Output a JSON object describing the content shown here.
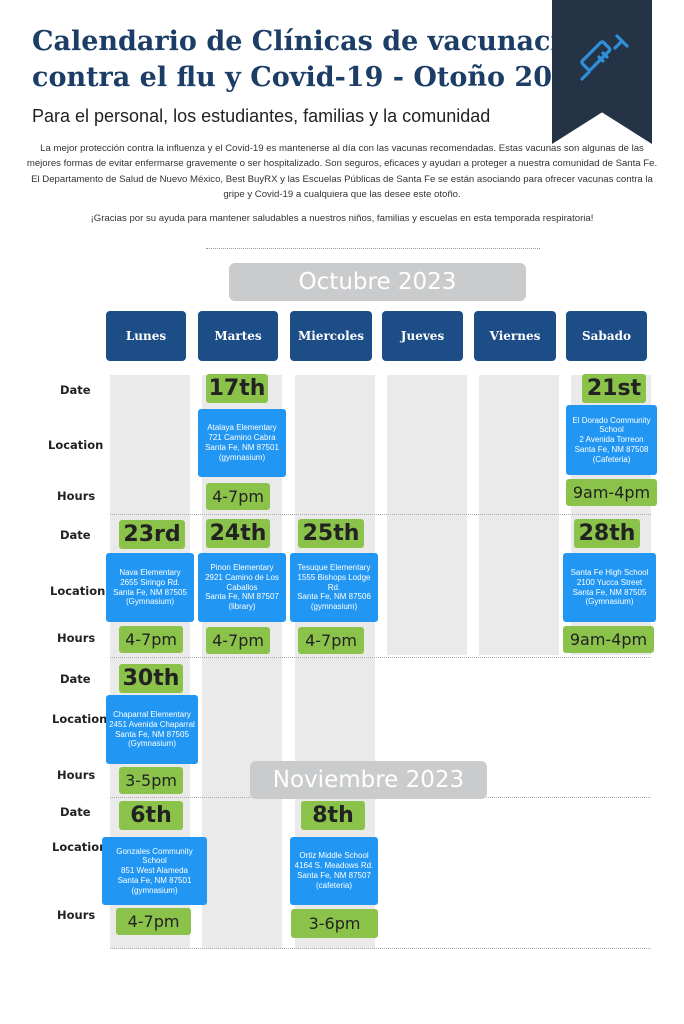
{
  "header": {
    "title_line1": "Calendario de Clínicas de vacunación",
    "title_line2": "contra el flu y Covid-19 - Otoño 2023",
    "subtitle": "Para el personal, los estudiantes, familias y la comunidad",
    "intro": "La mejor protección contra la influenza y el Covid-19 es mantenerse al día con las vacunas recomendadas. Estas vacunas son algunas de las mejores formas de evitar enfermarse gravemente o ser hospitalizado. Son seguros, eficaces y ayudan a proteger a nuestra comunidad de Santa Fe. El Departamento de Salud de Nuevo México, Best BuyRX y las Escuelas Públicas de Santa Fe se están asociando para ofrecer vacunas contra la gripe y Covid-19 a cualquiera que las desee este otoño.",
    "thanks": "¡Gracias por su ayuda para mantener saludables a nuestros niños, familias y escuelas en esta temporada respiratoria!",
    "icon": "syringe-icon"
  },
  "months": {
    "october": "Octubre 2023",
    "november": "Noviembre 2023"
  },
  "days": [
    "Lunes",
    "Martes",
    "Miercoles",
    "Jueves",
    "Viernes",
    "Sabado"
  ],
  "row_labels": {
    "date": "Date",
    "location": "Location",
    "hours": "Hours"
  },
  "clinics": [
    {
      "date": "17th",
      "location": "Atalaya Elementary\n721 Camino Cabra\nSanta Fe, NM 87501\n(gymnasium)",
      "hours": "4-7pm"
    },
    {
      "date": "21st",
      "location": "El Dorado Community\nSchool\n2 Avenida Torreon\nSanta Fe, NM 87508\n(Cafeteria)",
      "hours": "9am-4pm"
    },
    {
      "date": "23rd",
      "location": "Nava Elementary\n2655 Siringo Rd.\nSanta Fe, NM 87505\n(Gymnasium)",
      "hours": "4-7pm"
    },
    {
      "date": "24th",
      "location": "Pinon Elementary\n2921 Camino de Los\nCaballos\nSanta Fe, NM 87507\n(library)",
      "hours": "4-7pm"
    },
    {
      "date": "25th",
      "location": "Tesuque Elementary\n1555 Bishops Lodge Rd.\nSanta Fe, NM 87506\n(gymnasium)",
      "hours": "4-7pm"
    },
    {
      "date": "28th",
      "location": "Santa Fe High School\n2100 Yucca Street\nSanta Fe, NM 87505\n(Gymnasium)",
      "hours": "9am-4pm"
    },
    {
      "date": "30th",
      "location": "Chaparral Elementary\n2451 Avenida Chaparral\nSanta Fe, NM 87505\n(Gymnasium)",
      "hours": "3-5pm"
    },
    {
      "date": "6th",
      "location": "Gonzales Community School\n851 West Alameda\nSanta Fe, NM 87501\n(gymnasium)",
      "hours": "4-7pm"
    },
    {
      "date": "8th",
      "location": "Ortiz Middle School\n4164 S. Meadows Rd.\nSanta Fe, NM 87507\n(cafeteria)",
      "hours": "3-6pm"
    }
  ],
  "colors": {
    "navy": "#1c4d86",
    "title": "#1b3d66",
    "banner": "#243446",
    "green": "#8bc34a",
    "blue": "#2196f3",
    "gray": "#c9cbcd"
  }
}
